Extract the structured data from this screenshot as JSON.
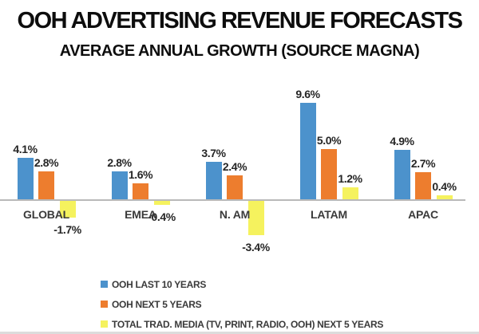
{
  "header": {
    "title": "OOH ADVERTISING REVENUE FORECASTS",
    "subtitle": "AVERAGE ANNUAL GROWTH (SOURCE MAGNA)"
  },
  "chart_data": {
    "type": "bar",
    "title": "OOH ADVERTISING REVENUE FORECASTS",
    "subtitle": "AVERAGE ANNUAL GROWTH (SOURCE MAGNA)",
    "categories": [
      "GLOBAL",
      "EMEA",
      "N. AM",
      "LATAM",
      "APAC"
    ],
    "series": [
      {
        "name": "OOH LAST 10 YEARS",
        "color": "#4C92CC",
        "values": [
          4.1,
          2.8,
          3.7,
          9.6,
          4.9
        ],
        "labels": [
          "4.1%",
          "2.8%",
          "3.7%",
          "9.6%",
          "4.9%"
        ]
      },
      {
        "name": "OOH NEXT 5 YEARS",
        "color": "#ED7D2E",
        "values": [
          2.8,
          1.6,
          2.4,
          5.0,
          2.7
        ],
        "labels": [
          "2.8%",
          "1.6%",
          "2.4%",
          "5.0%",
          "2.7%"
        ]
      },
      {
        "name": "TOTAL TRAD. MEDIA (TV, PRINT, RADIO, OOH) NEXT 5 YEARS",
        "color": "#F5F25E",
        "values": [
          -1.7,
          -0.4,
          -3.4,
          1.2,
          0.4
        ],
        "labels": [
          "-1.7%",
          "-0.4%",
          "-3.4%",
          "1.2%",
          "0.4%"
        ]
      }
    ],
    "xlabel": "",
    "ylabel": "",
    "ylim": [
      -4,
      10
    ],
    "grid": false,
    "legend_position": "bottom-left",
    "baseline_color": "#b9b9b9"
  }
}
